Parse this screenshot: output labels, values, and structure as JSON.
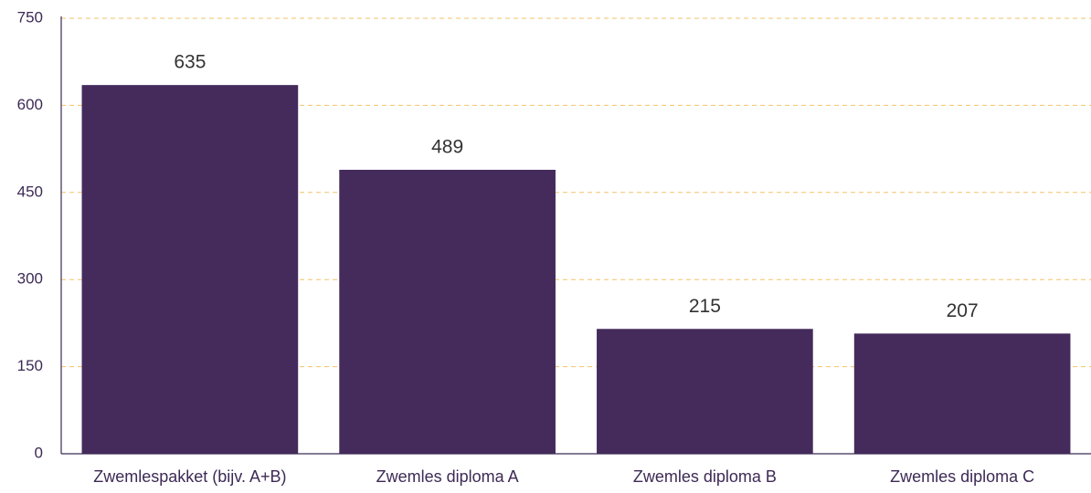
{
  "chart_data": {
    "type": "bar",
    "categories": [
      "Zwemlespakket (bijv. A+B)",
      "Zwemles diploma A",
      "Zwemles diploma B",
      "Zwemles diploma C"
    ],
    "values": [
      635,
      489,
      215,
      207
    ],
    "color": "#452b5c",
    "ylim": [
      0,
      750
    ],
    "yticks": [
      0,
      150,
      300,
      450,
      600,
      750
    ],
    "grid": true
  }
}
